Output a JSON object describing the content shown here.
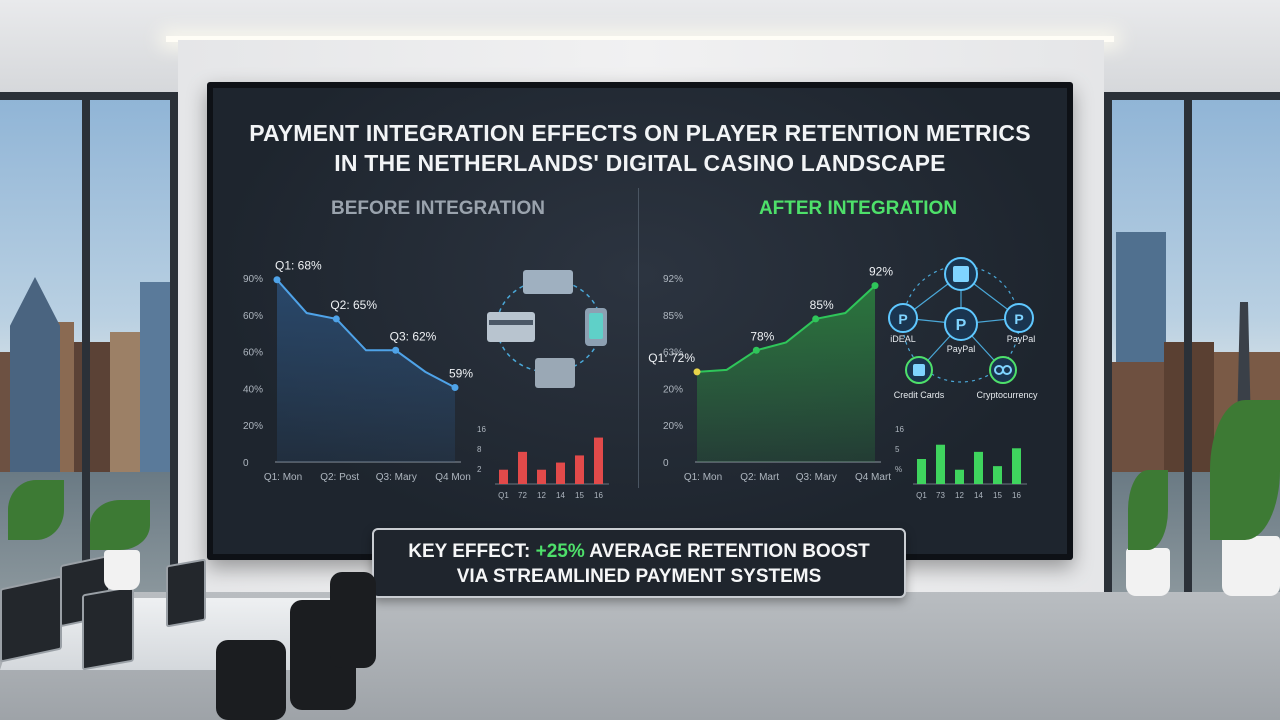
{
  "screen": {
    "title_line1": "PAYMENT INTEGRATION EFFECTS ON PLAYER RETENTION METRICS",
    "title_line2": "IN THE NETHERLANDS' DIGITAL CASINO LANDSCAPE",
    "before_heading": "BEFORE INTEGRATION",
    "after_heading": "AFTER INTEGRATION",
    "payment_labels": [
      "iDEAL",
      "PayPal",
      "PayPal",
      "Credit Cards",
      "Cryptocurrency"
    ],
    "callout_prefix": "KEY EFFECT: ",
    "callout_accent": "+25%",
    "callout_suffix": " AVERAGE RETENTION BOOST",
    "callout_line2": "VIA STREAMLINED PAYMENT SYSTEMS"
  },
  "colors": {
    "before_line": "#4fa3e8",
    "before_fill": "#2a4a6e",
    "after_line": "#2fc65a",
    "after_fill": "#2b7a3e",
    "after_start_point": "#e8d44a",
    "before_bars": "#e24a4a",
    "after_bars": "#3fd45e",
    "accent": "#4ee06a"
  },
  "chart_data": [
    {
      "type": "area",
      "name": "before",
      "yticks": [
        "90%",
        "60%",
        "60%",
        "40%",
        "20%",
        "0"
      ],
      "xticks": [
        "Q1: Mon",
        "Q2: Post",
        "Q3: Mary",
        "Q4 Mon"
      ],
      "points": [
        {
          "label": "Q1: 68%",
          "value": 68
        },
        {
          "value": 61
        },
        {
          "label": "Q2: 65%",
          "value": 65
        },
        {
          "value": 58
        },
        {
          "label": "Q3: 62%",
          "value": 62
        },
        {
          "value": 54
        },
        {
          "label": "59%",
          "value": 59
        }
      ],
      "display_level": [
        0.93,
        0.76,
        0.73,
        0.57,
        0.57,
        0.46,
        0.38
      ]
    },
    {
      "type": "bar",
      "name": "before-mini",
      "yticks": [
        "16",
        "8",
        "2"
      ],
      "categories": [
        "Q1",
        "72",
        "12",
        "14",
        "15",
        "16"
      ],
      "values": [
        4,
        9,
        4,
        6,
        8,
        13
      ]
    },
    {
      "type": "area",
      "name": "after",
      "yticks": [
        "92%",
        "85%",
        "63%",
        "20%",
        "20%",
        "0"
      ],
      "xticks": [
        "Q1: Mon",
        "Q2: Mart",
        "Q3: Mary",
        "Q4 Mart"
      ],
      "points": [
        {
          "label": "Q1: 72%",
          "value": 72
        },
        {
          "value": 72
        },
        {
          "label": "78%",
          "value": 78
        },
        {
          "value": 78
        },
        {
          "label": "85%",
          "value": 85
        },
        {
          "value": 85
        },
        {
          "label": "92%",
          "value": 92
        }
      ],
      "display_level": [
        0.46,
        0.47,
        0.57,
        0.61,
        0.73,
        0.76,
        0.9
      ]
    },
    {
      "type": "bar",
      "name": "after-mini",
      "yticks": [
        "16",
        "5",
        "%"
      ],
      "categories": [
        "Q1",
        "73",
        "12",
        "14",
        "15",
        "16"
      ],
      "values": [
        7,
        11,
        4,
        9,
        5,
        10
      ]
    }
  ]
}
